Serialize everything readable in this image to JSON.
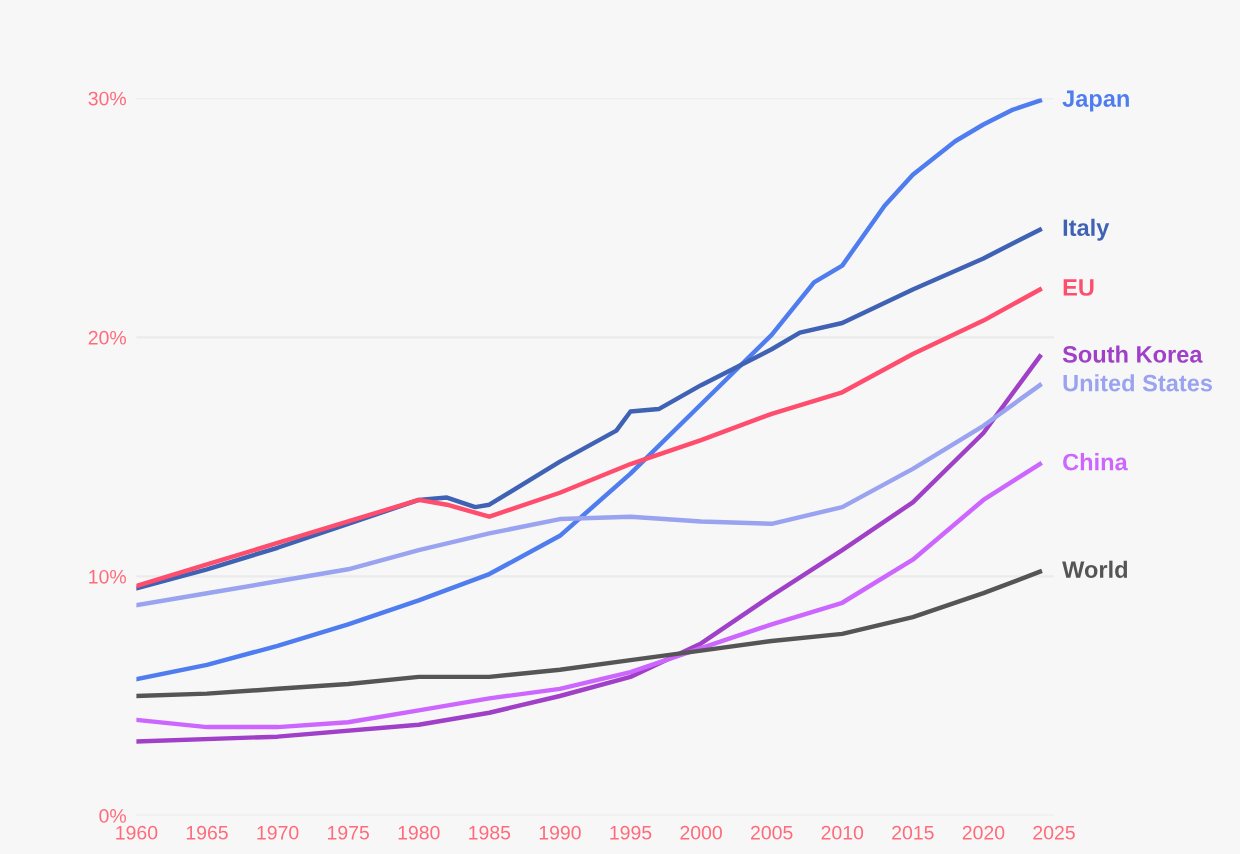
{
  "chart_data": {
    "type": "line",
    "xlim": [
      1960,
      2025
    ],
    "xticks": [
      1960,
      1965,
      1970,
      1975,
      1980,
      1985,
      1990,
      1995,
      2000,
      2005,
      2010,
      2015,
      2020,
      2025
    ],
    "ylim": [
      0,
      30
    ],
    "yticks": [
      {
        "value": 0,
        "label": "0%"
      },
      {
        "value": 10,
        "label": "10%"
      },
      {
        "value": 20,
        "label": "20%"
      },
      {
        "value": 30,
        "label": "30%"
      }
    ],
    "grid": "y",
    "legend": false,
    "marker": "none",
    "line_style": "solid",
    "series": [
      {
        "name": "Japan",
        "color": "#4f7df0",
        "x": [
          1960,
          1965,
          1970,
          1975,
          1980,
          1985,
          1990,
          1995,
          2000,
          2005,
          2008,
          2010,
          2013,
          2015,
          2018,
          2020,
          2022,
          2024
        ],
        "values": [
          5.7,
          6.3,
          7.1,
          8.0,
          9.0,
          10.1,
          11.7,
          14.3,
          17.2,
          20.1,
          22.3,
          23.0,
          25.5,
          26.8,
          28.2,
          28.9,
          29.5,
          29.9
        ]
      },
      {
        "name": "Italy",
        "color": "#3f62b5",
        "x": [
          1960,
          1965,
          1970,
          1975,
          1980,
          1982,
          1984,
          1985,
          1990,
          1994,
          1995,
          1997,
          2000,
          2005,
          2007,
          2010,
          2015,
          2020,
          2024
        ],
        "values": [
          9.5,
          10.3,
          11.2,
          12.2,
          13.2,
          13.3,
          12.9,
          13.0,
          14.8,
          16.1,
          16.9,
          17.0,
          18.0,
          19.5,
          20.2,
          20.6,
          22.0,
          23.3,
          24.5
        ]
      },
      {
        "name": "EU",
        "color": "#ff4d6d",
        "x": [
          1960,
          1965,
          1970,
          1975,
          1980,
          1982,
          1985,
          1990,
          1995,
          2000,
          2005,
          2010,
          2015,
          2020,
          2024
        ],
        "values": [
          9.6,
          10.5,
          11.4,
          12.3,
          13.2,
          13.0,
          12.5,
          13.5,
          14.7,
          15.7,
          16.8,
          17.7,
          19.3,
          20.7,
          22.0
        ]
      },
      {
        "name": "South Korea",
        "color": "#a040c8",
        "x": [
          1960,
          1970,
          1980,
          1985,
          1990,
          1995,
          2000,
          2005,
          2010,
          2015,
          2020,
          2024
        ],
        "values": [
          3.1,
          3.3,
          3.8,
          4.3,
          5.0,
          5.8,
          7.2,
          9.2,
          11.1,
          13.1,
          16.0,
          19.2
        ]
      },
      {
        "name": "United States",
        "color": "#99a3f0",
        "x": [
          1960,
          1965,
          1970,
          1975,
          1980,
          1985,
          1990,
          1995,
          2000,
          2005,
          2010,
          2015,
          2020,
          2024
        ],
        "values": [
          8.8,
          9.3,
          9.8,
          10.3,
          11.1,
          11.8,
          12.4,
          12.5,
          12.3,
          12.2,
          12.9,
          14.5,
          16.3,
          18.0
        ]
      },
      {
        "name": "China",
        "color": "#cc66ff",
        "x": [
          1960,
          1965,
          1970,
          1975,
          1980,
          1985,
          1990,
          1995,
          2000,
          2005,
          2010,
          2015,
          2020,
          2024
        ],
        "values": [
          4.0,
          3.7,
          3.7,
          3.9,
          4.4,
          4.9,
          5.3,
          6.0,
          7.0,
          8.0,
          8.9,
          10.7,
          13.2,
          14.7
        ]
      },
      {
        "name": "World",
        "color": "#555555",
        "x": [
          1960,
          1965,
          1970,
          1975,
          1980,
          1985,
          1990,
          1995,
          2000,
          2005,
          2010,
          2015,
          2020,
          2024
        ],
        "values": [
          5.0,
          5.1,
          5.3,
          5.5,
          5.8,
          5.8,
          6.1,
          6.5,
          6.9,
          7.3,
          7.6,
          8.3,
          9.3,
          10.2
        ]
      }
    ]
  }
}
